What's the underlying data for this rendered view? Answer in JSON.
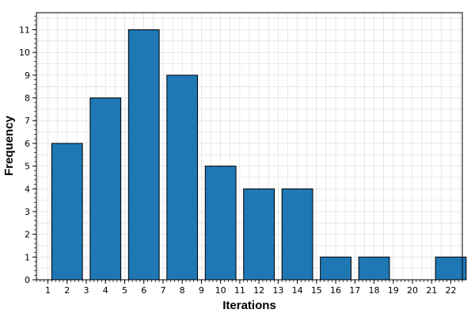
{
  "chart_data": {
    "type": "bar",
    "title": "",
    "xlabel": "Iterations",
    "ylabel": "Frequency",
    "xlim": [
      0.4,
      22.6
    ],
    "ylim": [
      0,
      11.75
    ],
    "grid": true,
    "legend": "none",
    "bar_color": "#1f77b4",
    "bar_edge_color": "#000000",
    "x_ticks": [
      1,
      2,
      3,
      4,
      5,
      6,
      7,
      8,
      9,
      10,
      11,
      12,
      13,
      14,
      15,
      16,
      17,
      18,
      19,
      20,
      21,
      22
    ],
    "y_ticks": [
      0,
      1,
      2,
      3,
      4,
      5,
      6,
      7,
      8,
      9,
      10,
      11
    ],
    "bars": [
      {
        "x0": 1.2,
        "x1": 2.8,
        "value": 6
      },
      {
        "x0": 3.2,
        "x1": 4.8,
        "value": 8
      },
      {
        "x0": 5.2,
        "x1": 6.8,
        "value": 11
      },
      {
        "x0": 7.2,
        "x1": 8.8,
        "value": 9
      },
      {
        "x0": 9.2,
        "x1": 10.8,
        "value": 5
      },
      {
        "x0": 11.2,
        "x1": 12.8,
        "value": 4
      },
      {
        "x0": 13.2,
        "x1": 14.8,
        "value": 4
      },
      {
        "x0": 15.2,
        "x1": 16.8,
        "value": 1
      },
      {
        "x0": 17.2,
        "x1": 18.8,
        "value": 1
      },
      {
        "x0": 19.2,
        "x1": 20.8,
        "value": 0
      },
      {
        "x0": 21.2,
        "x1": 22.8,
        "value": 1
      }
    ]
  }
}
